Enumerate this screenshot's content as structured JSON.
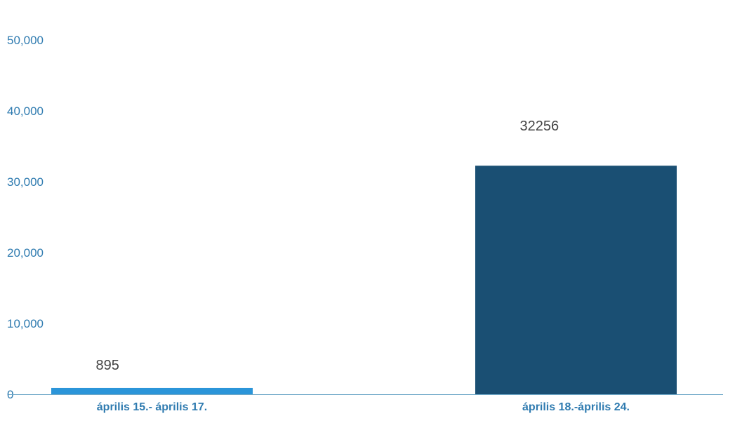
{
  "chart_data": {
    "type": "bar",
    "title": "",
    "xlabel": "",
    "ylabel": "",
    "categories": [
      "április 15.- április 17.",
      "április 18.-április 24."
    ],
    "values": [
      895,
      32256
    ],
    "data_labels": [
      "895",
      "32256"
    ],
    "ylim": [
      0,
      50000
    ],
    "yticks": [
      0,
      10000,
      20000,
      30000,
      40000,
      50000
    ],
    "ytick_labels": [
      "0",
      "10,000",
      "20,000",
      "30,000",
      "40,000",
      "50,000"
    ],
    "grid": false,
    "legend": "none",
    "colors": [
      "#2b95d9",
      "#1a4f73"
    ],
    "axis_color": "#6fa8c8"
  }
}
